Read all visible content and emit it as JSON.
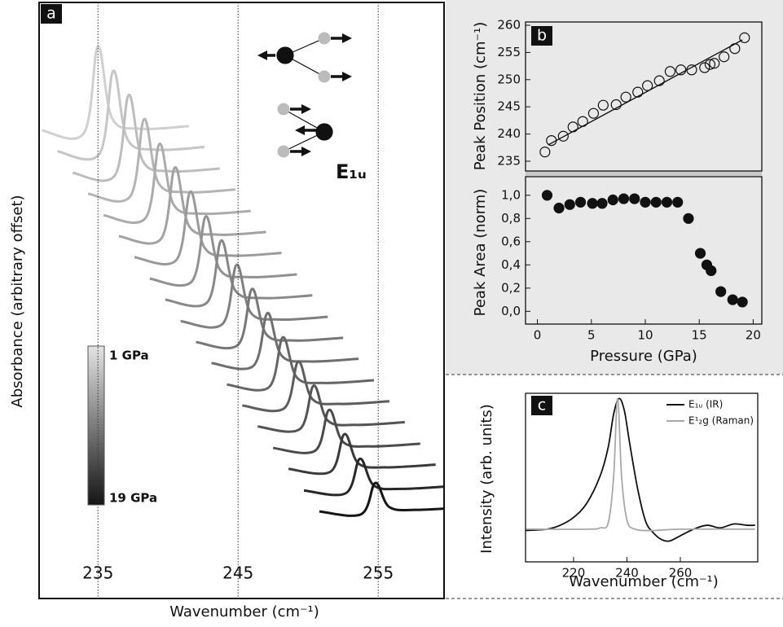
{
  "chart_data": [
    {
      "type": "line",
      "panel": "a",
      "xlabel": "Wavenumber (cm⁻¹)",
      "ylabel": "Absorbance (arbitrary offset)",
      "annotation": "E₁ᵤ",
      "xlim": [
        230.8,
        259.7
      ],
      "ylim": [
        -5.3,
        105.6
      ],
      "xticks": [
        235,
        245,
        255
      ],
      "grid": true,
      "colorbar": {
        "labels": [
          "1 GPa",
          "19 GPa"
        ],
        "colors": [
          "#e4e4e4",
          "#141414"
        ]
      },
      "series": [
        {
          "color": "#d0d0d0",
          "x": [
            231.0,
            234.0,
            235.0,
            236.0,
            238.0,
            241.5
          ],
          "values": [
            81.8,
            81.3,
            97.4,
            84.1,
            82.1,
            82.6
          ]
        },
        {
          "color": "#c6c6c6",
          "x": [
            232.1,
            235.1,
            236.1,
            237.1,
            239.1,
            242.6
          ],
          "values": [
            77.9,
            77.4,
            92.9,
            80.2,
            78.2,
            78.7
          ]
        },
        {
          "color": "#bdbdbd",
          "x": [
            233.2,
            236.2,
            237.2,
            238.2,
            240.2,
            243.7
          ],
          "values": [
            73.9,
            73.4,
            88.4,
            76.1,
            74.2,
            74.7
          ]
        },
        {
          "color": "#b4b4b4",
          "x": [
            234.3,
            237.3,
            238.3,
            239.3,
            241.3,
            244.8
          ],
          "values": [
            70.0,
            69.5,
            83.9,
            72.1,
            70.3,
            70.8
          ]
        },
        {
          "color": "#ababab",
          "x": [
            235.4,
            238.4,
            239.4,
            240.4,
            242.4,
            245.9
          ],
          "values": [
            66.0,
            65.5,
            79.3,
            68.0,
            66.3,
            66.8
          ]
        },
        {
          "color": "#a2a2a2",
          "x": [
            236.5,
            239.5,
            240.5,
            241.5,
            243.5,
            247.0
          ],
          "values": [
            62.1,
            61.6,
            74.9,
            64.0,
            62.4,
            62.9
          ]
        },
        {
          "color": "#9a9a9a",
          "x": [
            237.6,
            240.6,
            241.6,
            242.6,
            244.6,
            248.1
          ],
          "values": [
            58.2,
            57.7,
            70.4,
            60.0,
            58.5,
            59.0
          ]
        },
        {
          "color": "#919191",
          "x": [
            238.7,
            241.7,
            242.7,
            243.7,
            245.7,
            249.2
          ],
          "values": [
            54.2,
            53.7,
            65.8,
            55.9,
            54.5,
            55.0
          ]
        },
        {
          "color": "#888888",
          "x": [
            239.8,
            242.8,
            243.8,
            244.8,
            246.8,
            250.3
          ],
          "values": [
            50.3,
            49.8,
            61.3,
            52.0,
            50.6,
            51.1
          ]
        },
        {
          "color": "#808080",
          "x": [
            240.9,
            243.9,
            244.9,
            245.9,
            247.9,
            251.4
          ],
          "values": [
            46.3,
            45.8,
            56.8,
            47.9,
            46.6,
            47.1
          ]
        },
        {
          "color": "#777777",
          "x": [
            242.0,
            245.0,
            246.0,
            247.0,
            249.0,
            252.5
          ],
          "values": [
            42.4,
            41.9,
            52.3,
            43.9,
            42.7,
            43.2
          ]
        },
        {
          "color": "#6e6e6e",
          "x": [
            243.1,
            246.1,
            247.1,
            248.1,
            250.1,
            253.6
          ],
          "values": [
            38.5,
            38.0,
            47.8,
            39.9,
            38.8,
            39.3
          ]
        },
        {
          "color": "#666666",
          "x": [
            244.2,
            247.2,
            248.2,
            249.2,
            251.2,
            254.7
          ],
          "values": [
            34.5,
            34.0,
            43.3,
            35.8,
            34.8,
            35.3
          ]
        },
        {
          "color": "#5d5d5d",
          "x": [
            245.3,
            248.3,
            249.3,
            250.3,
            252.3,
            255.8
          ],
          "values": [
            30.6,
            30.1,
            38.8,
            31.8,
            30.9,
            31.4
          ]
        },
        {
          "color": "#545454",
          "x": [
            246.4,
            249.4,
            250.4,
            251.4,
            253.4,
            256.9
          ],
          "values": [
            26.7,
            26.2,
            34.3,
            27.8,
            27.0,
            27.5
          ]
        },
        {
          "color": "#4b4b4b",
          "x": [
            247.5,
            250.5,
            251.5,
            252.5,
            254.5,
            258.0
          ],
          "values": [
            22.7,
            22.2,
            29.8,
            23.8,
            23.0,
            23.5
          ]
        },
        {
          "color": "#3a3a3a",
          "x": [
            248.6,
            251.6,
            252.6,
            253.6,
            255.6,
            259.1
          ],
          "values": [
            18.8,
            18.3,
            25.3,
            19.8,
            19.1,
            19.6
          ]
        },
        {
          "color": "#282828",
          "x": [
            249.7,
            252.7,
            253.7,
            254.7,
            256.7,
            260.2
          ],
          "values": [
            14.8,
            14.3,
            20.7,
            15.7,
            15.1,
            15.6
          ]
        },
        {
          "color": "#161616",
          "x": [
            250.8,
            253.8,
            254.8,
            255.8,
            257.8,
            261.3
          ],
          "values": [
            10.9,
            10.4,
            16.2,
            11.7,
            11.2,
            11.7
          ]
        }
      ]
    },
    {
      "type": "scatter",
      "panel": "b",
      "ylabel": "Peak Position (cm⁻¹)",
      "xlim": [
        -1.1,
        20.8
      ],
      "ylim": [
        233.2,
        260.6
      ],
      "yticks": [
        235,
        240,
        245,
        250,
        255,
        260
      ],
      "series": [
        {
          "marker": "open",
          "color": "#111111",
          "x": [
            0.7,
            1.3,
            2.4,
            3.3,
            4.2,
            5.2,
            6.1,
            7.3,
            8.2,
            9.3,
            10.2,
            11.3,
            12.3,
            13.3,
            14.3,
            15.5,
            16.0,
            16.4,
            17.3,
            18.3,
            19.2
          ],
          "values": [
            236.7,
            238.8,
            239.6,
            241.3,
            242.3,
            243.8,
            245.3,
            245.4,
            246.8,
            247.7,
            248.9,
            249.8,
            251.5,
            251.8,
            251.8,
            252.2,
            252.8,
            253.0,
            254.2,
            255.7,
            257.7
          ]
        },
        {
          "style": "line",
          "color": "#111111",
          "x": [
            1.0,
            19.0
          ],
          "values": [
            238.0,
            257.3
          ]
        }
      ]
    },
    {
      "type": "scatter",
      "ylabel": "Peak Area (norm)",
      "xlabel": "Pressure (GPa)",
      "xlim": [
        -1.1,
        20.8
      ],
      "ylim": [
        -0.11,
        1.16
      ],
      "xticks": [
        0,
        5,
        10,
        15,
        20
      ],
      "yticks": [
        {
          "value": 0,
          "label": "0,0"
        },
        {
          "value": 0.2,
          "label": "0,2"
        },
        {
          "value": 0.4,
          "label": "0,4"
        },
        {
          "value": 0.6,
          "label": "0,6"
        },
        {
          "value": 0.8,
          "label": "0,8"
        },
        {
          "value": 1,
          "label": "1,0"
        }
      ],
      "series": [
        {
          "marker": "filled",
          "color": "#111111",
          "x": [
            0.9,
            2.0,
            3.0,
            4.0,
            5.1,
            6.0,
            7.0,
            8.0,
            9.0,
            10.0,
            11.0,
            12.0,
            13.0,
            14.0,
            15.1,
            15.7,
            16.1,
            17.0,
            18.1,
            19.0
          ],
          "values": [
            1.0,
            0.89,
            0.92,
            0.94,
            0.93,
            0.93,
            0.96,
            0.97,
            0.97,
            0.94,
            0.94,
            0.94,
            0.94,
            0.8,
            0.5,
            0.4,
            0.35,
            0.17,
            0.1,
            0.08
          ]
        }
      ]
    },
    {
      "type": "line",
      "panel": "c",
      "xlabel": "Wavenumber (cm⁻¹)",
      "ylabel": "Intensity (arb. units)",
      "xlim": [
        202,
        289
      ],
      "ylim": [
        -0.25,
        1.04
      ],
      "xticks": [
        220,
        240,
        260
      ],
      "legend": "upper right",
      "series": [
        {
          "name": "E₁ᵤ (IR)",
          "color": "#111111",
          "x": [
            202,
            210,
            215,
            220,
            225,
            230,
            233,
            235,
            237,
            239,
            241,
            244,
            247,
            250,
            253,
            256,
            260,
            265,
            270,
            275,
            280,
            285,
            288
          ],
          "values": [
            -0.01,
            0.0,
            0.03,
            0.09,
            0.2,
            0.41,
            0.63,
            0.88,
            1.0,
            0.91,
            0.66,
            0.31,
            0.06,
            -0.03,
            -0.08,
            -0.09,
            -0.05,
            0.0,
            0.03,
            0.01,
            0.04,
            0.03,
            0.03
          ]
        },
        {
          "name": "E¹₂g (Raman)",
          "color": "#a8a8a8",
          "x": [
            202,
            225,
            230,
            233,
            235,
            236.5,
            238,
            240,
            243,
            250,
            260,
            288
          ],
          "values": [
            0.0,
            0.0,
            0.01,
            0.05,
            0.4,
            1.0,
            0.4,
            0.07,
            0.0,
            -0.01,
            0.0,
            0.0
          ]
        }
      ]
    }
  ]
}
